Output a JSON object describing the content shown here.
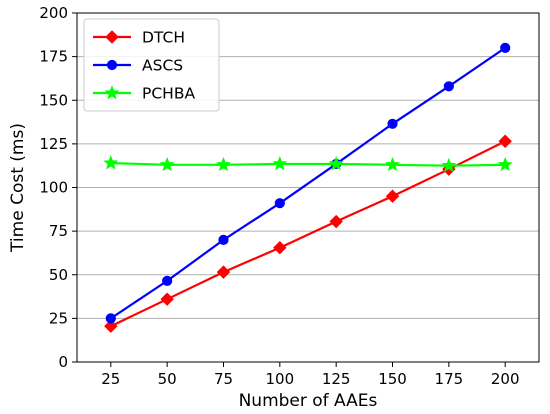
{
  "chart_data": {
    "type": "line",
    "xlabel": "Number of AAEs",
    "ylabel": "Time Cost (ms)",
    "x": [
      25,
      50,
      75,
      100,
      125,
      150,
      175,
      200
    ],
    "xlim": [
      10,
      215
    ],
    "ylim": [
      0,
      200
    ],
    "xticks": [
      "25",
      "50",
      "75",
      "100",
      "125",
      "150",
      "175",
      "200"
    ],
    "yticks": [
      "0",
      "25",
      "50",
      "75",
      "100",
      "125",
      "150",
      "175",
      "200"
    ],
    "grid": "horizontal",
    "legend_position": "top-left",
    "series": [
      {
        "name": "DTCH",
        "color": "#ff0000",
        "marker": "diamond",
        "values": [
          20.5,
          36,
          51.5,
          65.5,
          80.5,
          95,
          110.5,
          126.5
        ]
      },
      {
        "name": "ASCS",
        "color": "#0000ff",
        "marker": "circle",
        "values": [
          25,
          46.5,
          70,
          91,
          113.5,
          136.5,
          158,
          180
        ]
      },
      {
        "name": "PCHBA",
        "color": "#00ff00",
        "marker": "star",
        "values": [
          114,
          113,
          113,
          113.5,
          113.5,
          113,
          112.5,
          113
        ]
      }
    ]
  }
}
